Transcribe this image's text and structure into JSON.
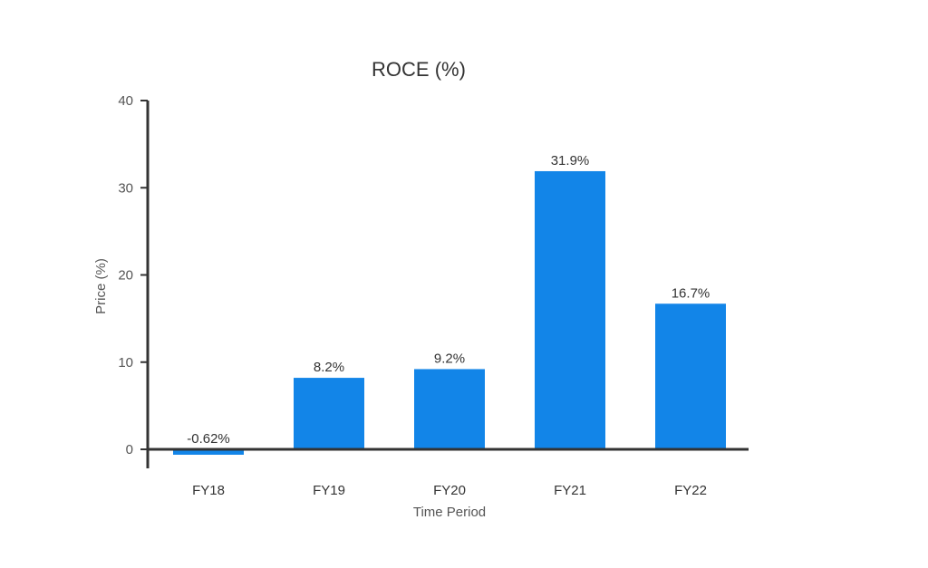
{
  "chart_data": {
    "type": "bar",
    "title": "ROCE (%)",
    "xlabel": "Time Period",
    "ylabel": "Price (%)",
    "categories": [
      "FY18",
      "FY19",
      "FY20",
      "FY21",
      "FY22"
    ],
    "values": [
      -0.62,
      8.2,
      9.2,
      31.9,
      16.7
    ],
    "data_labels": [
      "-0.62%",
      "8.2%",
      "9.2%",
      "31.9%",
      "16.7%"
    ],
    "ylim": [
      -2,
      40
    ],
    "yticks": [
      {
        "value": 0,
        "label": "0"
      },
      {
        "value": 10,
        "label": "10"
      },
      {
        "value": 20,
        "label": "20"
      },
      {
        "value": 30,
        "label": "30"
      },
      {
        "value": 40,
        "label": "40"
      }
    ],
    "grid": false,
    "bar_color": "#1285E8",
    "axis_color": "#333333"
  }
}
